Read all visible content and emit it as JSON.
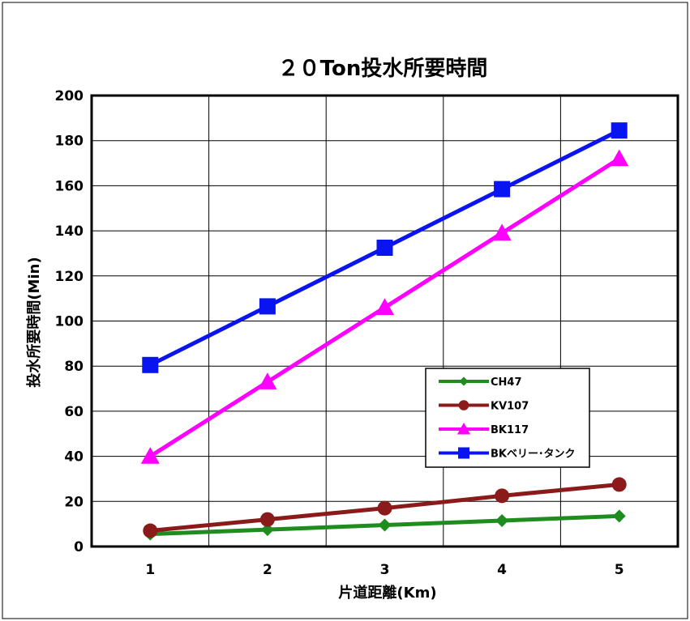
{
  "chart_data": {
    "type": "line",
    "title": "２０Ton投水所要時間",
    "xlabel": "片道距離(Km)",
    "ylabel": "投水所要時間(Min)",
    "categories": [
      "1",
      "2",
      "3",
      "4",
      "5"
    ],
    "ylim": [
      0,
      200
    ],
    "yticks": [
      0,
      20,
      40,
      60,
      80,
      100,
      120,
      140,
      160,
      180,
      200
    ],
    "grid": true,
    "legend_position": "right-middle",
    "series": [
      {
        "name": "CH47",
        "values": [
          5.5,
          7.5,
          9.5,
          11.5,
          13.5
        ],
        "color": "#1e8c1e",
        "marker": "diamond"
      },
      {
        "name": "KV107",
        "values": [
          7,
          12,
          17,
          22.5,
          27.5
        ],
        "color": "#8b1a1a",
        "marker": "circle"
      },
      {
        "name": "BK117",
        "values": [
          40,
          73,
          106,
          139,
          172
        ],
        "color": "#ff00ff",
        "marker": "triangle"
      },
      {
        "name": "BKベリー･タンク",
        "values": [
          80.5,
          106.5,
          132.5,
          158.5,
          184.5
        ],
        "color": "#0a14f0",
        "marker": "square"
      }
    ]
  }
}
